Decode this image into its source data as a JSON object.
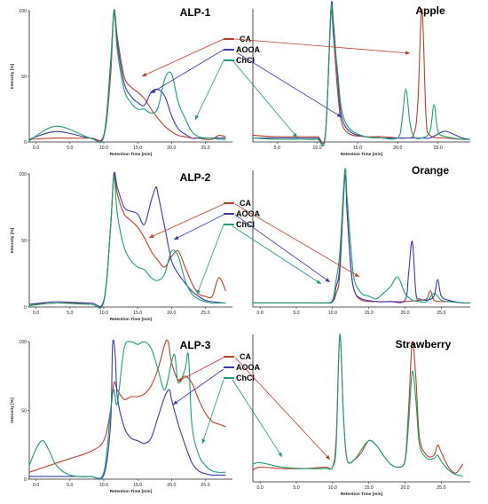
{
  "figure": {
    "legend": [
      {
        "name": "CA",
        "color": "#b5402a"
      },
      {
        "name": "AOOA",
        "color": "#3a3aa8"
      },
      {
        "name": "ChCl",
        "color": "#1e9e6e"
      }
    ]
  },
  "chart_data": [
    {
      "id": "alp1",
      "type": "line",
      "title": "ALP-1",
      "xlabel": "Retention Time [min]",
      "ylabel": "Intensity [%]",
      "xlim": [
        -1,
        29
      ],
      "ylim": [
        0,
        100
      ],
      "xticks": [
        "0.0",
        "5.0",
        "10.0",
        "15.0",
        "20.0",
        "25.0"
      ],
      "yticks": [
        "0",
        "50",
        "100"
      ],
      "series": [
        {
          "name": "CA",
          "color": "#b5402a",
          "x": [
            -1,
            3,
            8,
            10,
            11,
            11.5,
            12,
            13,
            14,
            15,
            16,
            17,
            18,
            19,
            20,
            21,
            22,
            23,
            24,
            25,
            26,
            27,
            28
          ],
          "y": [
            2,
            3,
            3,
            5,
            50,
            100,
            80,
            50,
            42,
            38,
            33,
            25,
            18,
            12,
            8,
            5,
            4,
            3,
            3,
            2,
            2,
            5,
            4
          ]
        },
        {
          "name": "AOOA",
          "color": "#3a3aa8",
          "x": [
            -1,
            3,
            8,
            10,
            11,
            11.5,
            12,
            13,
            14,
            15,
            16,
            17,
            18,
            19,
            20,
            21,
            22,
            23,
            24,
            25,
            26,
            27,
            28
          ],
          "y": [
            2,
            8,
            3,
            5,
            60,
            98,
            75,
            45,
            35,
            30,
            28,
            38,
            40,
            35,
            20,
            10,
            6,
            3,
            3,
            3,
            3,
            3,
            3
          ]
        },
        {
          "name": "ChCl",
          "color": "#1e9e6e",
          "x": [
            -1,
            3,
            8,
            10,
            11,
            11.5,
            12,
            13,
            14,
            15,
            16,
            17,
            18,
            19,
            20,
            21,
            22,
            23,
            24,
            25,
            26,
            27,
            28
          ],
          "y": [
            1,
            12,
            3,
            4,
            55,
            100,
            70,
            40,
            30,
            25,
            25,
            22,
            26,
            48,
            52,
            30,
            18,
            8,
            4,
            3,
            3,
            2,
            2
          ]
        }
      ]
    },
    {
      "id": "apple",
      "type": "line",
      "title": "Apple",
      "xlabel": "Retention Time [min]",
      "ylabel": "",
      "xlim": [
        2,
        29
      ],
      "ylim": [
        0,
        100
      ],
      "xticks": [
        "5.0",
        "10.0",
        "15.0",
        "20.0",
        "25.0"
      ],
      "yticks": [],
      "series": [
        {
          "name": "CA",
          "color": "#b5402a",
          "x": [
            2,
            5,
            8,
            10,
            11,
            11.7,
            12,
            12.5,
            13,
            14,
            16,
            18,
            20,
            21,
            22,
            22.5,
            23,
            23.5,
            24,
            26,
            28,
            29
          ],
          "y": [
            5,
            4,
            4,
            4,
            6,
            95,
            80,
            40,
            15,
            6,
            4,
            4,
            3,
            3,
            6,
            30,
            100,
            20,
            5,
            3,
            2,
            2
          ]
        },
        {
          "name": "AOOA",
          "color": "#3a3aa8",
          "x": [
            2,
            5,
            8,
            10,
            11,
            11.7,
            12,
            12.5,
            13,
            14,
            16,
            18,
            20,
            21,
            22,
            23,
            24,
            25,
            26,
            28,
            29
          ],
          "y": [
            3,
            3,
            3,
            3,
            5,
            100,
            90,
            50,
            20,
            8,
            4,
            3,
            3,
            3,
            3,
            3,
            3,
            6,
            8,
            3,
            2
          ]
        },
        {
          "name": "ChCl",
          "color": "#1e9e6e",
          "x": [
            2,
            5,
            8,
            10,
            11,
            11.7,
            12,
            12.5,
            13,
            14,
            16,
            18,
            20,
            20.5,
            21,
            21.5,
            22,
            23,
            24,
            24.5,
            25,
            26,
            28,
            29
          ],
          "y": [
            3,
            2,
            2,
            2,
            5,
            100,
            80,
            55,
            25,
            10,
            4,
            3,
            3,
            15,
            40,
            15,
            4,
            3,
            8,
            28,
            8,
            4,
            2,
            2
          ]
        }
      ]
    },
    {
      "id": "alp2",
      "type": "line",
      "title": "ALP-2",
      "xlabel": "Retention Time [min]",
      "ylabel": "Intensity [%]",
      "xlim": [
        -1,
        29
      ],
      "ylim": [
        0,
        100
      ],
      "xticks": [
        "0.0",
        "5.0",
        "10.0",
        "15.0",
        "20.0",
        "25.0"
      ],
      "yticks": [
        "0",
        "50",
        "100"
      ],
      "series": [
        {
          "name": "CA",
          "color": "#b5402a",
          "x": [
            -1,
            3,
            8,
            10,
            11,
            11.5,
            12,
            13,
            14,
            15,
            16,
            17,
            18,
            19,
            20,
            21,
            22,
            23,
            24,
            25,
            26,
            27,
            28
          ],
          "y": [
            2,
            3,
            3,
            5,
            60,
            100,
            85,
            70,
            65,
            60,
            52,
            42,
            35,
            30,
            38,
            42,
            30,
            18,
            10,
            8,
            8,
            22,
            12
          ]
        },
        {
          "name": "AOOA",
          "color": "#3a3aa8",
          "x": [
            -1,
            3,
            8,
            10,
            11,
            11.5,
            12,
            13,
            14,
            15,
            16,
            17,
            17.7,
            18,
            19,
            20,
            21,
            22,
            23,
            24,
            25,
            26,
            28
          ],
          "y": [
            2,
            4,
            3,
            5,
            60,
            100,
            90,
            75,
            72,
            70,
            62,
            80,
            90,
            85,
            60,
            35,
            25,
            18,
            12,
            8,
            5,
            4,
            3
          ]
        },
        {
          "name": "ChCl",
          "color": "#1e9e6e",
          "x": [
            -1,
            3,
            8,
            10,
            11,
            11.5,
            12,
            13,
            14,
            15,
            16,
            17,
            18,
            19,
            20,
            21,
            22,
            23,
            24,
            25,
            26,
            27,
            28
          ],
          "y": [
            1,
            3,
            2,
            4,
            60,
            98,
            70,
            45,
            35,
            30,
            28,
            22,
            20,
            25,
            42,
            38,
            20,
            10,
            6,
            4,
            3,
            3,
            3
          ]
        }
      ]
    },
    {
      "id": "orange",
      "type": "line",
      "title": "Orange",
      "xlabel": "",
      "ylabel": "",
      "xlim": [
        -1,
        29
      ],
      "ylim": [
        0,
        100
      ],
      "xticks": [
        "0.0",
        "5.0",
        "10.0",
        "15.0",
        "20.0",
        "25.0"
      ],
      "yticks": [],
      "series": [
        {
          "name": "CA",
          "color": "#b5402a",
          "x": [
            -1,
            3,
            7,
            9,
            10,
            10.5,
            11,
            11.7,
            12,
            12.5,
            13,
            14,
            16,
            18,
            20,
            22,
            23,
            23.5,
            24,
            25,
            26,
            28,
            29
          ],
          "y": [
            3,
            3,
            3,
            3,
            4,
            10,
            25,
            100,
            70,
            30,
            12,
            5,
            4,
            4,
            4,
            5,
            6,
            12,
            5,
            4,
            4,
            3,
            3
          ]
        },
        {
          "name": "AOOA",
          "color": "#3a3aa8",
          "x": [
            -1,
            3,
            7,
            9,
            10,
            10.5,
            11,
            11.7,
            12,
            12.5,
            13,
            14,
            16,
            18,
            20,
            20.5,
            21,
            21.5,
            22,
            23,
            24,
            24.5,
            25,
            26,
            28,
            29
          ],
          "y": [
            3,
            3,
            3,
            3,
            4,
            15,
            30,
            95,
            70,
            30,
            12,
            6,
            4,
            4,
            5,
            25,
            48,
            10,
            6,
            5,
            8,
            20,
            8,
            5,
            3,
            3
          ]
        },
        {
          "name": "ChCl",
          "color": "#1e9e6e",
          "x": [
            -1,
            3,
            7,
            9,
            10,
            10.5,
            11,
            11.7,
            12,
            12.5,
            13,
            14,
            15,
            16,
            17,
            18,
            19,
            20,
            21,
            22,
            23,
            24,
            25,
            26,
            28,
            29
          ],
          "y": [
            3,
            3,
            3,
            3,
            5,
            20,
            40,
            100,
            80,
            45,
            20,
            10,
            8,
            6,
            10,
            15,
            22,
            10,
            5,
            4,
            4,
            10,
            5,
            4,
            3,
            3
          ]
        }
      ]
    },
    {
      "id": "alp3",
      "type": "line",
      "title": "ALP-3",
      "xlabel": "Retention Time [min]",
      "ylabel": "Intensity [%]",
      "xlim": [
        -1,
        29
      ],
      "ylim": [
        0,
        100
      ],
      "xticks": [
        "0.0",
        "5.0",
        "10.0",
        "15.0",
        "20.0",
        "25.0"
      ],
      "yticks": [
        "0",
        "50",
        "100"
      ],
      "series": [
        {
          "name": "CA",
          "color": "#b5402a",
          "x": [
            -1,
            2,
            5,
            8,
            10,
            11,
            11.5,
            12,
            13,
            14,
            15,
            16,
            17,
            18,
            19,
            19.5,
            20,
            21,
            22,
            23,
            24,
            25,
            26,
            27,
            28
          ],
          "y": [
            5,
            10,
            15,
            20,
            28,
            50,
            70,
            65,
            58,
            60,
            60,
            62,
            68,
            80,
            98,
            100,
            85,
            72,
            75,
            70,
            58,
            48,
            42,
            40,
            38
          ]
        },
        {
          "name": "AOOA",
          "color": "#3a3aa8",
          "x": [
            -1,
            2,
            5,
            8,
            10,
            11,
            11.3,
            11.7,
            12,
            13,
            14,
            15,
            16,
            17,
            18,
            19,
            19.7,
            20,
            21,
            22,
            23,
            24,
            25,
            26,
            28
          ],
          "y": [
            2,
            2,
            2,
            2,
            3,
            40,
            98,
            90,
            60,
            38,
            30,
            28,
            26,
            30,
            45,
            60,
            65,
            58,
            40,
            25,
            12,
            6,
            4,
            3,
            3
          ]
        },
        {
          "name": "ChCl",
          "color": "#1e9e6e",
          "x": [
            -1,
            0,
            1,
            2,
            3,
            5,
            8,
            10,
            11,
            11.5,
            12,
            13,
            14,
            15,
            16,
            17,
            18,
            19,
            20,
            20.5,
            21,
            22,
            22.5,
            23,
            24,
            25,
            26,
            27,
            28
          ],
          "y": [
            10,
            22,
            28,
            20,
            10,
            3,
            2,
            5,
            50,
            65,
            55,
            95,
            100,
            98,
            100,
            95,
            80,
            65,
            85,
            90,
            70,
            80,
            90,
            40,
            18,
            10,
            6,
            5,
            5
          ]
        }
      ]
    },
    {
      "id": "strawberry",
      "type": "line",
      "title": "Strawberry",
      "xlabel": "Retention Time [min]",
      "ylabel": "",
      "xlim": [
        -1,
        29
      ],
      "ylim": [
        0,
        100
      ],
      "xticks": [
        "0.0",
        "5.0",
        "10.0",
        "15.0",
        "20.0",
        "25.0"
      ],
      "yticks": [],
      "series": [
        {
          "name": "CA",
          "color": "#b5402a",
          "x": [
            -1,
            0,
            3,
            6,
            9,
            10,
            10.5,
            11,
            11.5,
            12,
            13,
            14,
            15,
            16,
            17,
            18,
            19,
            20,
            20.5,
            21,
            21.5,
            22,
            23,
            24,
            24.5,
            25,
            26,
            27,
            28
          ],
          "y": [
            8,
            10,
            9,
            9,
            10,
            10,
            30,
            100,
            45,
            15,
            15,
            20,
            28,
            25,
            18,
            12,
            10,
            15,
            50,
            95,
            70,
            30,
            18,
            18,
            25,
            20,
            10,
            6,
            12
          ]
        },
        {
          "name": "ChCl",
          "color": "#1e9e6e",
          "x": [
            -1,
            0,
            3,
            6,
            9,
            10,
            10.5,
            11,
            11.5,
            12,
            13,
            14,
            15,
            16,
            17,
            18,
            19,
            20,
            20.5,
            21,
            21.5,
            22,
            23,
            24,
            24.5,
            25,
            26,
            27,
            28
          ],
          "y": [
            12,
            13,
            10,
            9,
            9,
            10,
            25,
            100,
            45,
            15,
            15,
            22,
            28,
            25,
            18,
            12,
            10,
            14,
            40,
            75,
            55,
            25,
            16,
            16,
            18,
            14,
            8,
            5,
            4
          ]
        }
      ]
    }
  ]
}
